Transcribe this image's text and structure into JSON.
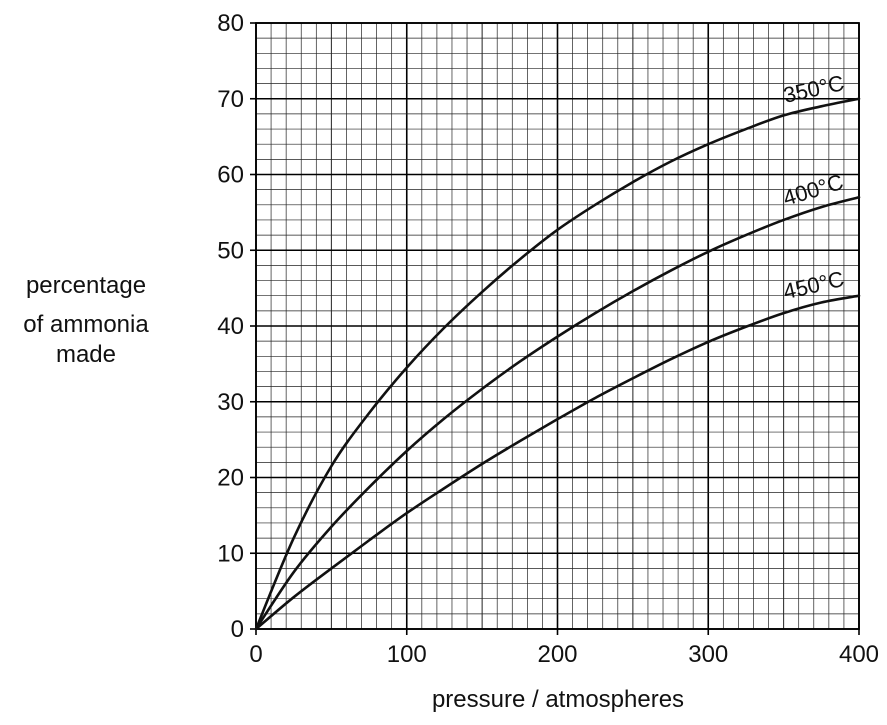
{
  "chart_data": {
    "type": "line",
    "title": "",
    "xlabel": "pressure / atmospheres",
    "ylabel_lines": [
      "percentage",
      "of ammonia",
      "made"
    ],
    "xlim": [
      0,
      400
    ],
    "ylim": [
      0,
      80
    ],
    "x_ticks": [
      0,
      100,
      200,
      300,
      400
    ],
    "y_ticks": [
      0,
      10,
      20,
      30,
      40,
      50,
      60,
      70,
      80
    ],
    "grid": true,
    "colors": {
      "grid_fine": "#222222",
      "grid_major": "#000000",
      "series_line": "#111111",
      "background": "#ffffff"
    },
    "series": [
      {
        "name": "350°C",
        "x": [
          0,
          25,
          50,
          75,
          100,
          125,
          150,
          175,
          200,
          225,
          250,
          275,
          300,
          325,
          350,
          375,
          400
        ],
        "y": [
          0,
          12,
          21.5,
          28.5,
          34.5,
          39.8,
          44.5,
          48.8,
          52.7,
          56,
          59,
          61.7,
          64,
          66,
          67.8,
          69,
          70
        ]
      },
      {
        "name": "400°C",
        "x": [
          0,
          25,
          50,
          75,
          100,
          125,
          150,
          175,
          200,
          225,
          250,
          275,
          300,
          325,
          350,
          375,
          400
        ],
        "y": [
          0,
          7.5,
          13.5,
          18.7,
          23.5,
          27.8,
          31.7,
          35.3,
          38.6,
          41.7,
          44.6,
          47.3,
          49.8,
          52,
          54,
          55.7,
          57
        ]
      },
      {
        "name": "450°C",
        "x": [
          0,
          25,
          50,
          75,
          100,
          125,
          150,
          175,
          200,
          225,
          250,
          275,
          300,
          325,
          350,
          375,
          400
        ],
        "y": [
          0,
          4.2,
          8,
          11.7,
          15.3,
          18.6,
          21.8,
          24.8,
          27.7,
          30.5,
          33.1,
          35.6,
          37.9,
          39.9,
          41.7,
          43.1,
          44
        ]
      }
    ]
  }
}
